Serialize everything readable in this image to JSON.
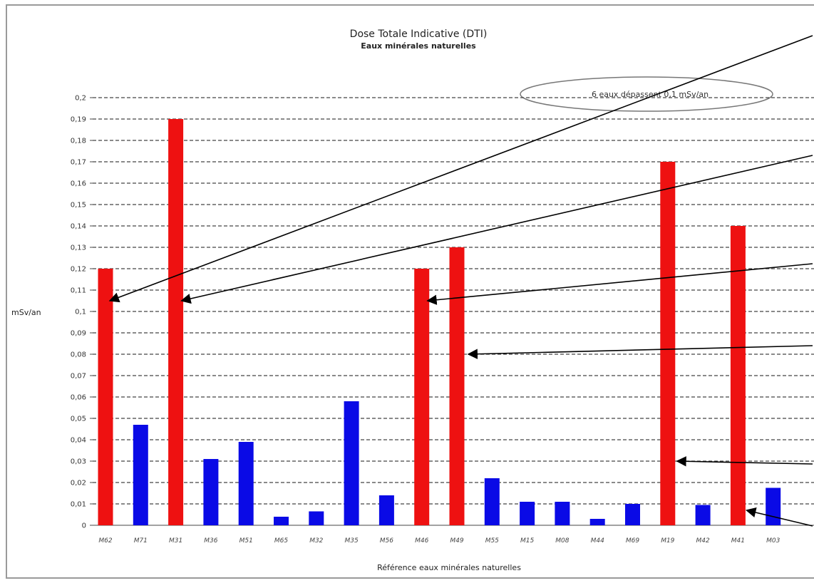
{
  "chart_data": {
    "type": "bar",
    "title": "Dose Totale Indicative (DTI)",
    "subtitle": "Eaux minérales naturelles",
    "xlabel": "Référence eaux minérales naturelles",
    "ylabel": "mSv/an",
    "ylim": [
      0,
      0.2
    ],
    "yticks": [
      "0",
      "0,01",
      "0,02",
      "0,03",
      "0,04",
      "0,05",
      "0,06",
      "0,07",
      "0,08",
      "0,09",
      "0,1",
      "0,11",
      "0,12",
      "0,13",
      "0,14",
      "0,15",
      "0,16",
      "0,17",
      "0,18",
      "0,19",
      "0,2"
    ],
    "grid": true,
    "categories": [
      "M62",
      "M71",
      "M31",
      "M36",
      "M51",
      "M65",
      "M32",
      "M35",
      "M56",
      "M46",
      "M49",
      "M55",
      "M15",
      "M08",
      "M44",
      "M69",
      "M19",
      "M42",
      "M41",
      "M03"
    ],
    "values": [
      0.12,
      0.047,
      0.19,
      0.031,
      0.039,
      0.004,
      0.0065,
      0.058,
      0.014,
      0.12,
      0.13,
      0.022,
      0.011,
      0.011,
      0.003,
      0.01,
      0.17,
      0.0095,
      0.14,
      0.0175
    ],
    "threshold": 0.1,
    "colors": {
      "above": "#ee1111",
      "below": "#0a0ae6"
    },
    "annotation": "6 eaux dépassent 0,1 mSv/an"
  }
}
